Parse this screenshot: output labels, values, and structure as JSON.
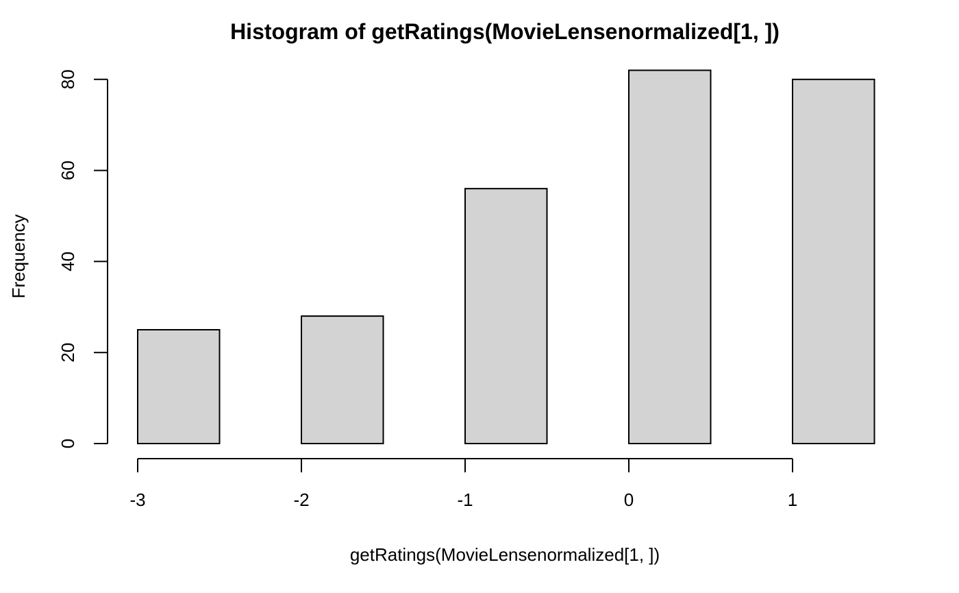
{
  "chart_data": {
    "type": "bar",
    "title": "Histogram of getRatings(MovieLensenormalized[1, ])",
    "xlabel": "getRatings(MovieLensenormalized[1, ])",
    "ylabel": "Frequency",
    "bins": [
      {
        "x_start": -3.0,
        "x_end": -2.5,
        "count": 25
      },
      {
        "x_start": -2.0,
        "x_end": -1.5,
        "count": 28
      },
      {
        "x_start": -1.0,
        "x_end": -0.5,
        "count": 56
      },
      {
        "x_start": 0.0,
        "x_end": 0.5,
        "count": 82
      },
      {
        "x_start": 1.0,
        "x_end": 1.5,
        "count": 80
      }
    ],
    "xlim": [
      -3,
      1.5
    ],
    "ylim": [
      0,
      82
    ],
    "x_ticks": [
      -3,
      -2,
      -1,
      0,
      1
    ],
    "x_tick_labels": [
      "-3",
      "-2",
      "-1",
      "0",
      "1"
    ],
    "y_ticks": [
      0,
      20,
      40,
      60,
      80
    ],
    "y_tick_labels": [
      "0",
      "20",
      "40",
      "60",
      "80"
    ],
    "bar_fill": "#d3d3d3",
    "bar_stroke": "#000000",
    "grid": false,
    "legend": "none"
  }
}
